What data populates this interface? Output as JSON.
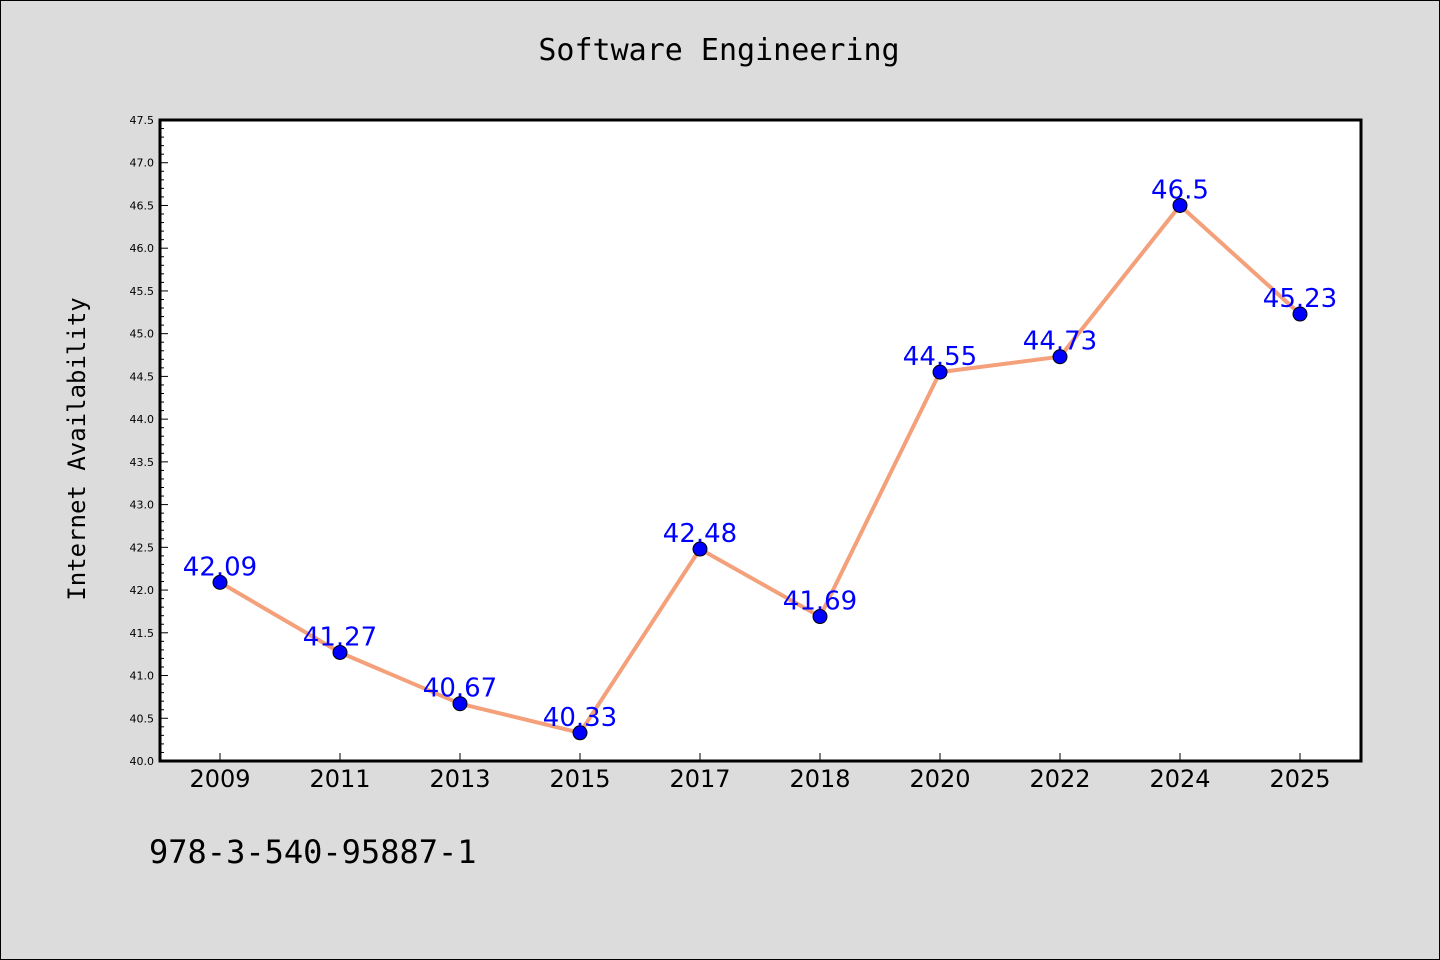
{
  "chart_data": {
    "type": "line",
    "title": "Software Engineering",
    "xlabel": "",
    "ylabel": "Internet Availability",
    "categories": [
      "2009",
      "2011",
      "2013",
      "2015",
      "2017",
      "2018",
      "2020",
      "2022",
      "2024",
      "2025"
    ],
    "series": [
      {
        "values": [
          42.09,
          41.27,
          40.67,
          40.33,
          42.48,
          41.69,
          44.55,
          44.73,
          46.5,
          45.23
        ],
        "data_labels": [
          "42.09",
          "41.27",
          "40.67",
          "40.33",
          "42.48",
          "41.69",
          "44.55",
          "44.73",
          "46.5",
          "45.23"
        ],
        "line_color": "#f4a07a",
        "marker_color": "#0000ff"
      }
    ],
    "ylim": [
      40.0,
      47.5
    ],
    "y_ticks": [
      "40.0",
      "40.5",
      "41.0",
      "41.5",
      "42.0",
      "42.5",
      "43.0",
      "43.5",
      "44.0",
      "44.5",
      "45.0",
      "45.5",
      "46.0",
      "46.5",
      "47.0",
      "47.5"
    ],
    "grid": false,
    "legend": "none"
  },
  "footer": {
    "code": "978-3-540-95887-1"
  },
  "colors": {
    "background": "#dcdcdc",
    "plot_background": "#ffffff",
    "label_color": "#0000ff"
  }
}
